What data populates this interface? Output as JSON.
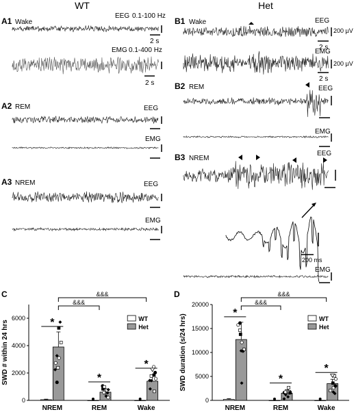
{
  "columns": {
    "wt": "WT",
    "het": "Het"
  },
  "panels": {
    "A1": {
      "label": "A1",
      "state": "Wake",
      "eeg": "EEG",
      "eeg_filter": "0.1-100 Hz",
      "emg": "EMG",
      "emg_filter": "0.1-400 Hz",
      "scale": "2 s"
    },
    "A2": {
      "label": "A2",
      "state": "REM",
      "eeg": "EEG",
      "emg": "EMG"
    },
    "A3": {
      "label": "A3",
      "state": "NREM",
      "eeg": "EEG",
      "emg": "EMG"
    },
    "B1": {
      "label": "B1",
      "state": "Wake",
      "eeg": "EEG",
      "emg": "EMG",
      "amp": "200 µV",
      "scale": "2 s"
    },
    "B2": {
      "label": "B2",
      "state": "REM",
      "eeg": "EEG",
      "emg": "EMG"
    },
    "B3": {
      "label": "B3",
      "state": "NREM",
      "eeg": "EEG",
      "emg": "EMG",
      "inset_scale": "200 ms"
    }
  },
  "chart_data": [
    {
      "panel": "C",
      "type": "bar",
      "categories": [
        "NREM",
        "REM",
        "Wake"
      ],
      "ylabel": "SWD # within 24 hrs",
      "ylim": [
        0,
        7000
      ],
      "yticks": [
        0,
        2000,
        4000,
        6000
      ],
      "legend": [
        "WT",
        "Het"
      ],
      "series": [
        {
          "name": "WT",
          "values": [
            50,
            0,
            0
          ],
          "errors": [
            40,
            0,
            0
          ]
        },
        {
          "name": "Het",
          "values": [
            3900,
            600,
            1400
          ],
          "errors": [
            1100,
            250,
            450
          ]
        }
      ],
      "significance": [
        "*",
        "*",
        "*"
      ],
      "brackets": [
        "&&&",
        "&&&"
      ]
    },
    {
      "panel": "D",
      "type": "bar",
      "categories": [
        "NREM",
        "REM",
        "Wake"
      ],
      "ylabel": "SWD duration (s/24 hrs)",
      "ylim": [
        0,
        20000
      ],
      "yticks": [
        0,
        5000,
        10000,
        15000,
        20000
      ],
      "legend": [
        "WT",
        "Het"
      ],
      "series": [
        {
          "name": "WT",
          "values": [
            200,
            0,
            0
          ],
          "errors": [
            150,
            0,
            0
          ]
        },
        {
          "name": "Het",
          "values": [
            12700,
            1500,
            3500
          ],
          "errors": [
            3600,
            700,
            900
          ]
        }
      ],
      "significance": [
        "*",
        "*",
        "*"
      ],
      "brackets": [
        "&&&",
        "&&&"
      ]
    }
  ],
  "colors": {
    "bar_wt": "#ffffff",
    "bar_het": "#999999",
    "trace": "#1a1a1a"
  }
}
